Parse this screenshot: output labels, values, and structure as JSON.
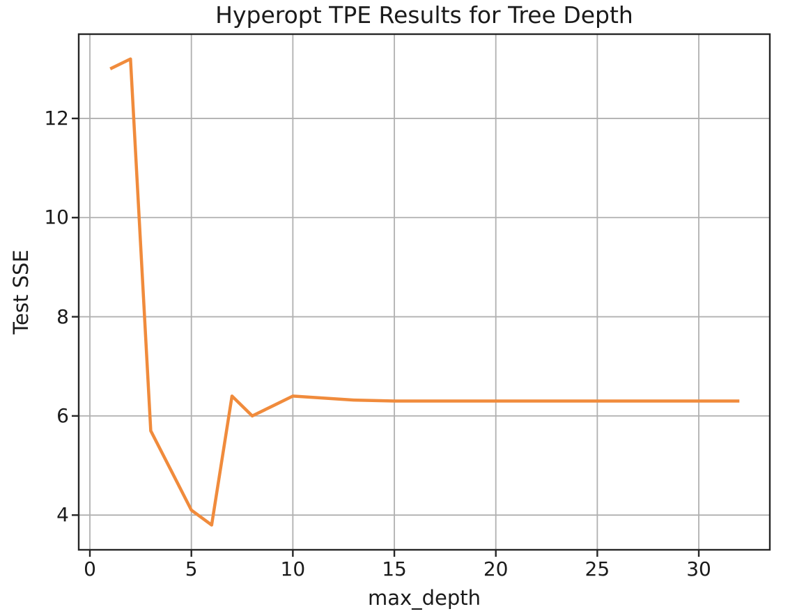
{
  "figure": {
    "kind": "matplotlib-line-chart"
  },
  "chart_data": {
    "type": "line",
    "title": "Hyperopt TPE Results for Tree Depth",
    "xlabel": "max_depth",
    "ylabel": "Test SSE",
    "series": [
      {
        "name": "Test SSE",
        "x": [
          1,
          2,
          3,
          4,
          5,
          6,
          7,
          8,
          9,
          10,
          13,
          15,
          20,
          25,
          30,
          32
        ],
        "y": [
          13.0,
          13.2,
          5.7,
          4.9,
          4.1,
          3.8,
          6.4,
          6.0,
          6.2,
          6.4,
          6.32,
          6.3,
          6.3,
          6.3,
          6.3,
          6.3
        ]
      }
    ],
    "xlim": [
      -0.55,
      33.5
    ],
    "ylim": [
      3.3,
      13.7
    ],
    "xticks": [
      0,
      5,
      10,
      15,
      20,
      25,
      30
    ],
    "yticks": [
      4,
      6,
      8,
      10,
      12
    ],
    "grid": true,
    "legend_position": "none",
    "colors": {
      "line": "#f08b3c",
      "grid": "#b0b0b0",
      "spine": "#262626",
      "tick": "#262626",
      "text": "#1a1a1a",
      "background": "#ffffff"
    }
  }
}
